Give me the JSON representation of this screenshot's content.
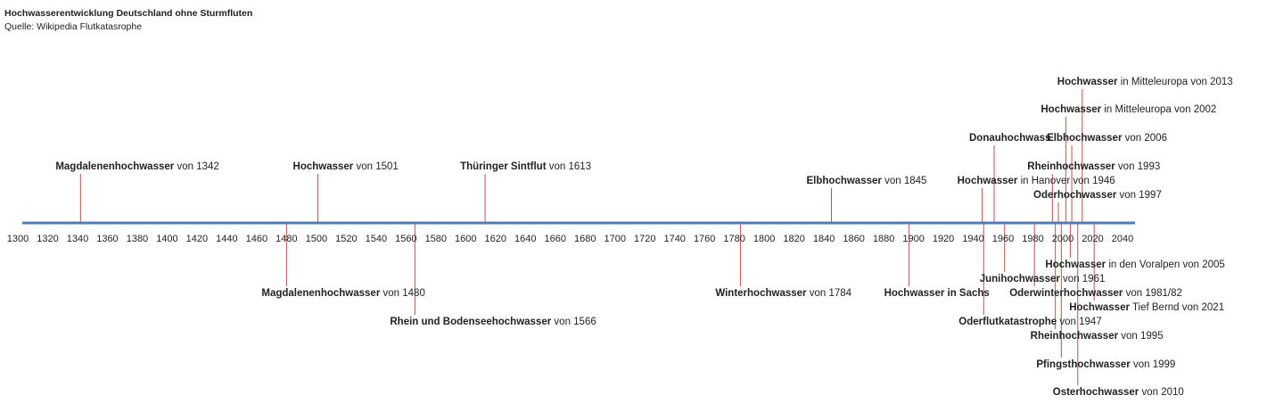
{
  "chart_data": {
    "type": "timeline",
    "title": "Hochwasserentwicklung Deutschland ohne Sturmfluten",
    "subtitle": "Quelle: Wikipedia Flutkatasrophe",
    "xlim": [
      1300,
      2040
    ],
    "xticks": [
      1300,
      1320,
      1340,
      1360,
      1380,
      1400,
      1420,
      1440,
      1460,
      1480,
      1500,
      1520,
      1540,
      1560,
      1580,
      1600,
      1620,
      1640,
      1660,
      1680,
      1700,
      1720,
      1740,
      1760,
      1780,
      1800,
      1820,
      1840,
      1860,
      1880,
      1900,
      1920,
      1940,
      1960,
      1980,
      2000,
      2020,
      2040
    ],
    "axis_color": "#4a7ebb",
    "leader_color": "#c0504d",
    "events": [
      {
        "name": "Magdalenenhochwasser",
        "suffix": "von 1342",
        "x": 1342
      },
      {
        "name": "Magdalenenhochwasser",
        "suffix": "von 1480",
        "x": 1480
      },
      {
        "name": "Hochwasser",
        "suffix": "von 1501",
        "x": 1501
      },
      {
        "name": "Rhein und Bodenseehochwasser",
        "suffix": "von 1566",
        "x": 1566
      },
      {
        "name": "Thüringer Sintflut",
        "suffix": "von 1613",
        "x": 1613
      },
      {
        "name": "Winterhochwasser",
        "suffix": "von 1784",
        "x": 1784
      },
      {
        "name": "Elbhochwasser",
        "suffix": "von 1845",
        "x": 1845
      },
      {
        "name": "Hochwasser in Sachs",
        "x": 1897
      },
      {
        "name": "Hochwasser",
        "suffix": "in Hanover von 1946",
        "x": 1946
      },
      {
        "name": "Oderflutkatastrophe",
        "suffix": "von 1947",
        "x": 1947
      },
      {
        "name": "Donauhochwass",
        "x": 1954
      },
      {
        "name": "Junihochwasser",
        "suffix": "von 1961",
        "x": 1961
      },
      {
        "name": "Oderwinterhochwasser",
        "suffix": "von 1981/82",
        "x": 1981
      },
      {
        "name": "Rheinhochwasser",
        "suffix": "von 1993",
        "x": 1993
      },
      {
        "name": "Rheinhochwasser",
        "suffix": "von 1995",
        "x": 1995
      },
      {
        "name": "Oderhochwasser",
        "suffix": "von 1997",
        "x": 1997
      },
      {
        "name": "Pfingsthochwasser",
        "suffix": "von 1999",
        "x": 1999
      },
      {
        "name": "Hochwasser",
        "suffix": "in Mitteleuropa von 2002",
        "x": 2002
      },
      {
        "name": "Hochwasser",
        "suffix": "in den Voralpen von 2005",
        "x": 2005
      },
      {
        "name": "Elbhochwasser",
        "suffix": "von 2006",
        "x": 2006
      },
      {
        "name": "Osterhochwasser",
        "suffix": "von 2010",
        "x": 2010
      },
      {
        "name": "Hochwasser",
        "suffix": "in Mitteleuropa von 2013",
        "x": 2013
      },
      {
        "name": "Hochwasser",
        "suffix": "Tief Bernd von 2021",
        "x": 2021
      }
    ]
  }
}
